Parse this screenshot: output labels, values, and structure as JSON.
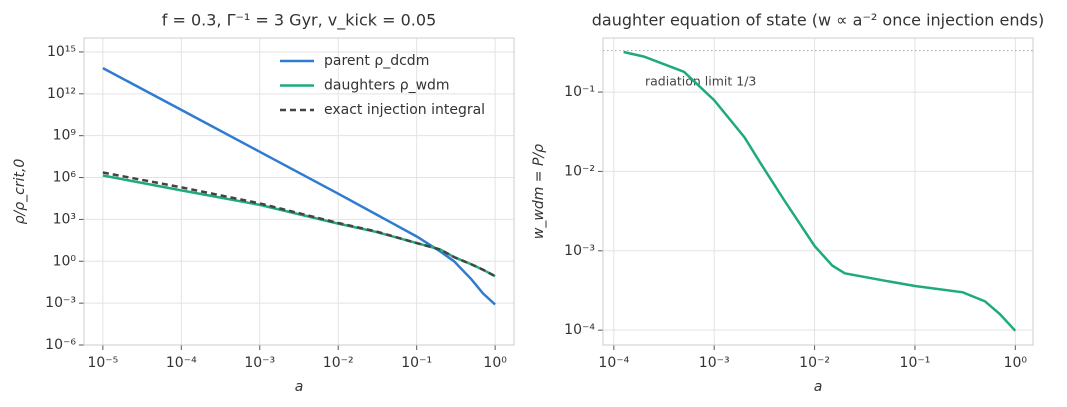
{
  "chart_data": [
    {
      "type": "line",
      "title": "f = 0.3, Γ⁻¹ = 3 Gyr, v_kick = 0.05",
      "xlabel": "a",
      "ylabel": "ρ/ρ_crit,0",
      "xscale": "log",
      "yscale": "log",
      "grid": true,
      "legend": "upper right",
      "xlim": [
        5.75e-06,
        1.74
      ],
      "ylim": [
        1e-06,
        1e+16
      ],
      "xticks": [
        {
          "value": 1e-05,
          "label": "10⁻⁵"
        },
        {
          "value": 0.0001,
          "label": "10⁻⁴"
        },
        {
          "value": 0.001,
          "label": "10⁻³"
        },
        {
          "value": 0.01,
          "label": "10⁻²"
        },
        {
          "value": 0.1,
          "label": "10⁻¹"
        },
        {
          "value": 1,
          "label": "10⁰"
        }
      ],
      "yticks": [
        {
          "value": 1e-06,
          "label": "10⁻⁶"
        },
        {
          "value": 0.001,
          "label": "10⁻³"
        },
        {
          "value": 1,
          "label": "10⁰"
        },
        {
          "value": 1000.0,
          "label": "10³"
        },
        {
          "value": 1000000.0,
          "label": "10⁶"
        },
        {
          "value": 1000000000.0,
          "label": "10⁹"
        },
        {
          "value": 1000000000000.0,
          "label": "10¹²"
        },
        {
          "value": 1000000000000000.0,
          "label": "10¹⁵"
        }
      ],
      "x": [
        1e-05,
        0.0001,
        0.001,
        0.01,
        0.03,
        0.1,
        0.2,
        0.3,
        0.5,
        0.7,
        1
      ],
      "series": [
        {
          "name": "parent ρ_dcdm",
          "color": "#2f7bd1",
          "style": "solid",
          "values": [
            70000000000000.0,
            70000000000.0,
            70000000.0,
            70000.0,
            2400,
            60,
            5,
            1,
            0.05,
            0.005,
            0.0008
          ]
        },
        {
          "name": "daughters ρ_wdm",
          "color": "#1fab78",
          "style": "solid",
          "values": [
            1400000.0,
            120000.0,
            11000.0,
            500,
            130,
            20,
            7,
            2,
            0.6,
            0.25,
            0.085
          ]
        },
        {
          "name": "exact injection integral",
          "color": "#444444",
          "style": "dashed",
          "values": [
            2300000.0,
            200000.0,
            14000.0,
            550,
            140,
            20,
            7,
            2,
            0.6,
            0.25,
            0.085
          ]
        }
      ]
    },
    {
      "type": "line",
      "title": "daughter equation of state (w ∝ a⁻² once injection ends)",
      "xlabel": "a",
      "ylabel": "w_wdm = P/ρ",
      "xscale": "log",
      "yscale": "log",
      "grid": true,
      "xlim": [
        7.8e-05,
        1.5
      ],
      "ylim": [
        6.5e-05,
        0.48
      ],
      "xticks": [
        {
          "value": 0.0001,
          "label": "10⁻⁴"
        },
        {
          "value": 0.001,
          "label": "10⁻³"
        },
        {
          "value": 0.01,
          "label": "10⁻²"
        },
        {
          "value": 0.1,
          "label": "10⁻¹"
        },
        {
          "value": 1,
          "label": "10⁰"
        }
      ],
      "yticks": [
        {
          "value": 0.0001,
          "label": "10⁻⁴"
        },
        {
          "value": 0.001,
          "label": "10⁻³"
        },
        {
          "value": 0.01,
          "label": "10⁻²"
        },
        {
          "value": 0.1,
          "label": "10⁻¹"
        }
      ],
      "reference_line": 0.333,
      "annotation": "radiation limit 1/3",
      "x": [
        0.000125,
        0.0002,
        0.0005,
        0.001,
        0.002,
        0.003,
        0.005,
        0.01,
        0.015,
        0.02,
        0.05,
        0.1,
        0.3,
        0.5,
        0.7,
        1
      ],
      "series": [
        {
          "color": "#1fab78",
          "style": "solid",
          "values": [
            0.32,
            0.28,
            0.18,
            0.079,
            0.027,
            0.0118,
            0.0043,
            0.00115,
            0.00065,
            0.00052,
            0.00042,
            0.00036,
            0.0003,
            0.00023,
            0.00016,
            9.8e-05
          ]
        }
      ]
    }
  ]
}
